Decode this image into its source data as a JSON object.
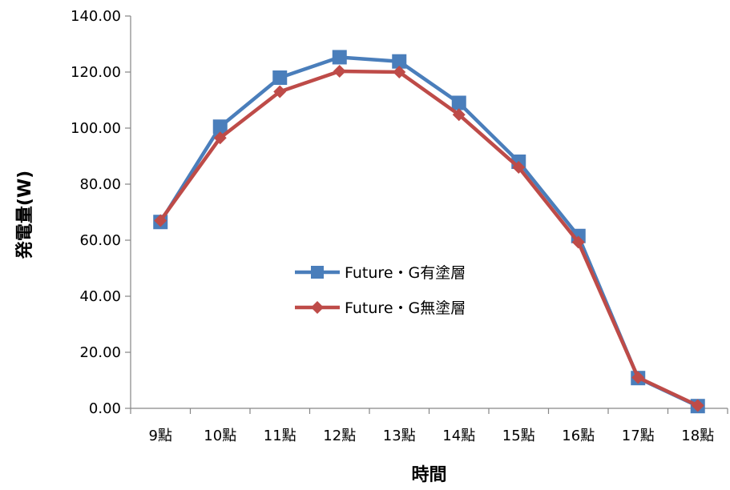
{
  "chart_data": {
    "type": "line",
    "title": "",
    "xlabel": "時間",
    "ylabel": "発電量(W)",
    "categories": [
      "9點",
      "10點",
      "11點",
      "12點",
      "13點",
      "14點",
      "15點",
      "16點",
      "17點",
      "18點"
    ],
    "ylim": [
      0,
      140
    ],
    "yticks": [
      "0.00",
      "20.00",
      "40.00",
      "60.00",
      "80.00",
      "100.00",
      "120.00",
      "140.00"
    ],
    "grid": false,
    "legend_position": "center",
    "series": [
      {
        "name": "Future・G有塗層",
        "color": "#4a7ebb",
        "marker": "square",
        "values": [
          66.5,
          100.5,
          118.0,
          125.3,
          123.8,
          109.0,
          88.0,
          61.5,
          10.8,
          0.8
        ]
      },
      {
        "name": "Future・G無塗層",
        "color": "#be4b48",
        "marker": "diamond",
        "values": [
          67.0,
          96.5,
          113.0,
          120.3,
          120.0,
          104.8,
          86.0,
          59.3,
          11.0,
          1.0
        ]
      }
    ]
  }
}
